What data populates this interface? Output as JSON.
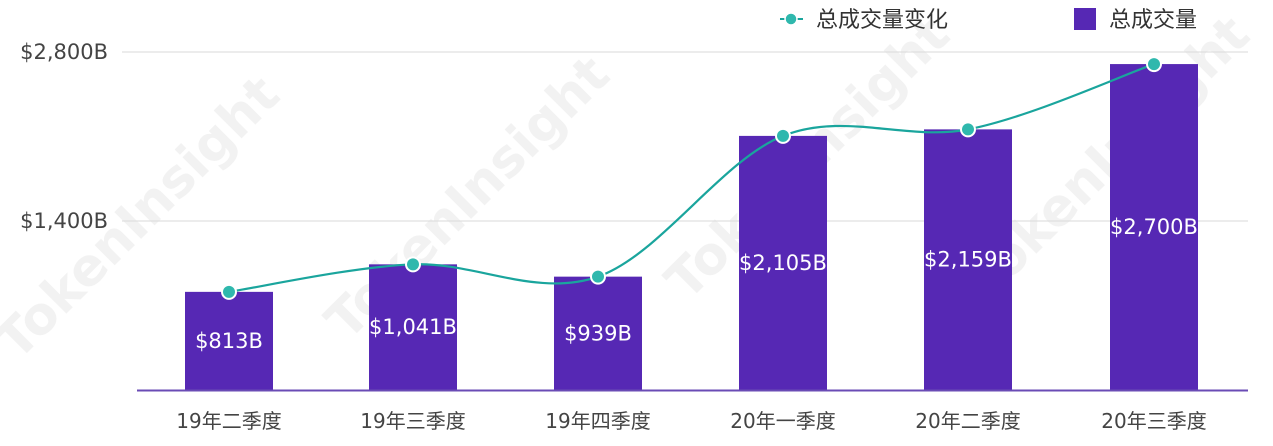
{
  "colors": {
    "bar": "#5628b4",
    "line": "#1aa59d",
    "marker_fill": "#2fb8ad",
    "grid": "#d9d9d9",
    "axis": "#6a4bb5",
    "watermark": "#c8c8c8"
  },
  "watermark_text": "TokenInsight",
  "legend": {
    "line_label": "总成交量变化",
    "bar_label": "总成交量",
    "line_icon": "line-marker-icon",
    "bar_icon": "square-icon"
  },
  "chart_data": {
    "type": "bar",
    "categories": [
      "19年二季度",
      "19年三季度",
      "19年四季度",
      "20年一季度",
      "20年二季度",
      "20年三季度"
    ],
    "series": [
      {
        "name": "总成交量",
        "type": "bar",
        "values": [
          813,
          1041,
          939,
          2105,
          2159,
          2700
        ],
        "labels": [
          "$813B",
          "$1,041B",
          "$939B",
          "$2,105B",
          "$2,159B",
          "$2,700B"
        ]
      },
      {
        "name": "总成交量变化",
        "type": "line",
        "smooth": true,
        "values": [
          813,
          1041,
          939,
          2105,
          2159,
          2700
        ]
      }
    ],
    "y_ticks": [
      {
        "value": 1400,
        "label": "$1,400B"
      },
      {
        "value": 2800,
        "label": "$2,800B"
      }
    ],
    "ylim": [
      0,
      2800
    ],
    "grid": true,
    "legend_position": "top-right"
  }
}
